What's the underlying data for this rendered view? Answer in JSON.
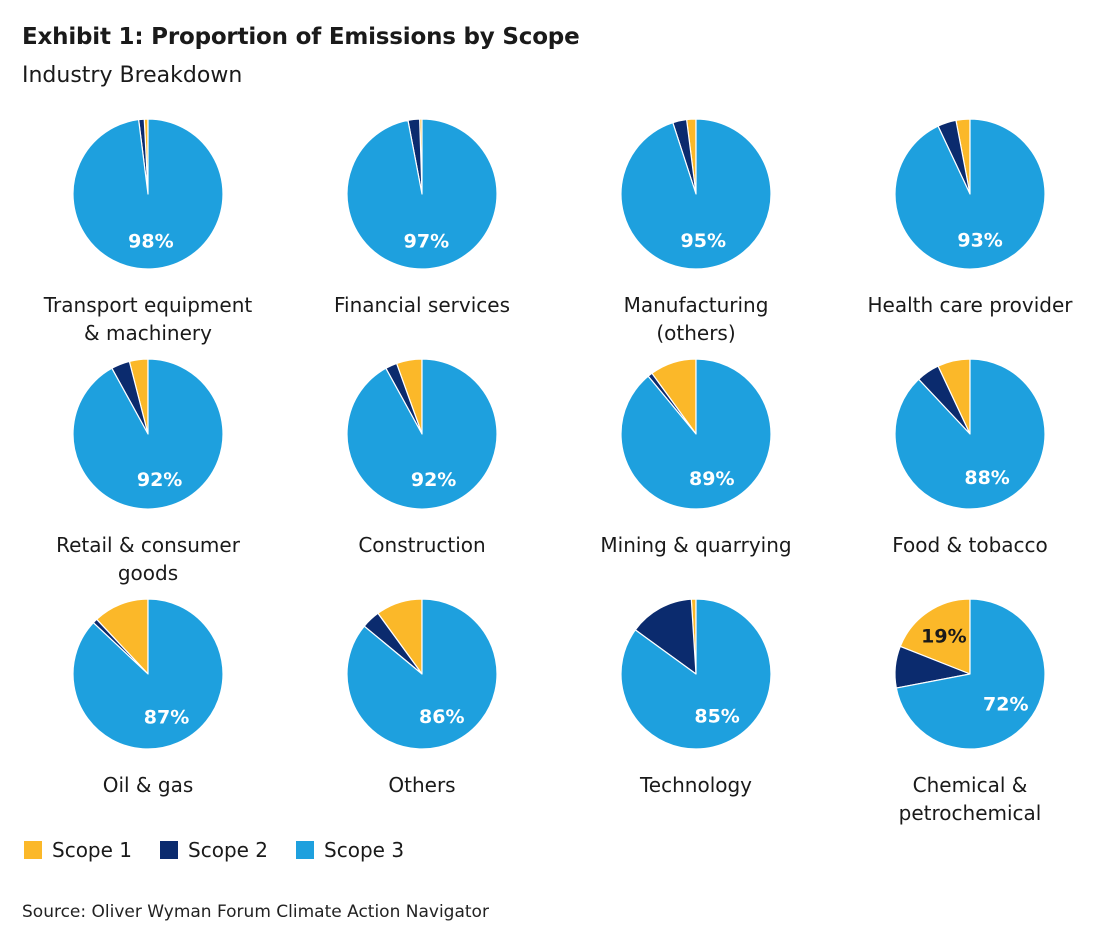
{
  "title": "Exhibit 1: Proportion of Emissions by Scope",
  "subtitle": "Industry Breakdown",
  "source": "Source: Oliver Wyman Forum Climate Action Navigator",
  "colors": {
    "scope1": "#fbb829",
    "scope2": "#0b2b6e",
    "scope3": "#1ea0de"
  },
  "legend": [
    {
      "label": "Scope 1",
      "color": "#fbb829"
    },
    {
      "label": "Scope 2",
      "color": "#0b2b6e"
    },
    {
      "label": "Scope 3",
      "color": "#1ea0de"
    }
  ],
  "chart_data": {
    "type": "pie",
    "series_names": [
      "Scope 1",
      "Scope 2",
      "Scope 3"
    ],
    "charts": [
      {
        "name": "Transport equipment\n& machinery",
        "values": [
          0.8,
          1.2,
          98
        ],
        "labels": [
          "",
          "",
          "98%"
        ]
      },
      {
        "name": "Financial services",
        "values": [
          0.5,
          2.5,
          97
        ],
        "labels": [
          "",
          "",
          "97%"
        ]
      },
      {
        "name": "Manufacturing\n(others)",
        "values": [
          2,
          3,
          95
        ],
        "labels": [
          "",
          "",
          "95%"
        ]
      },
      {
        "name": "Health care provider",
        "values": [
          3,
          4,
          93
        ],
        "labels": [
          "",
          "",
          "93%"
        ]
      },
      {
        "name": "Retail & consumer\ngoods",
        "values": [
          4,
          4,
          92
        ],
        "labels": [
          "",
          "",
          "92%"
        ]
      },
      {
        "name": "Construction",
        "values": [
          5.5,
          2.5,
          92
        ],
        "labels": [
          "",
          "",
          "92%"
        ]
      },
      {
        "name": "Mining & quarrying",
        "values": [
          10,
          1,
          89
        ],
        "labels": [
          "",
          "",
          "89%"
        ]
      },
      {
        "name": "Food & tobacco",
        "values": [
          7,
          5,
          88
        ],
        "labels": [
          "",
          "",
          "88%"
        ]
      },
      {
        "name": "Oil & gas",
        "values": [
          12,
          1,
          87
        ],
        "labels": [
          "",
          "",
          "87%"
        ]
      },
      {
        "name": "Others",
        "values": [
          10,
          4,
          86
        ],
        "labels": [
          "",
          "",
          "86%"
        ]
      },
      {
        "name": "Technology",
        "values": [
          1,
          14,
          85
        ],
        "labels": [
          "",
          "",
          "85%"
        ]
      },
      {
        "name": "Chemical &\npetrochemical",
        "values": [
          19,
          9,
          72
        ],
        "labels": [
          "19%",
          "",
          "72%"
        ]
      }
    ]
  }
}
